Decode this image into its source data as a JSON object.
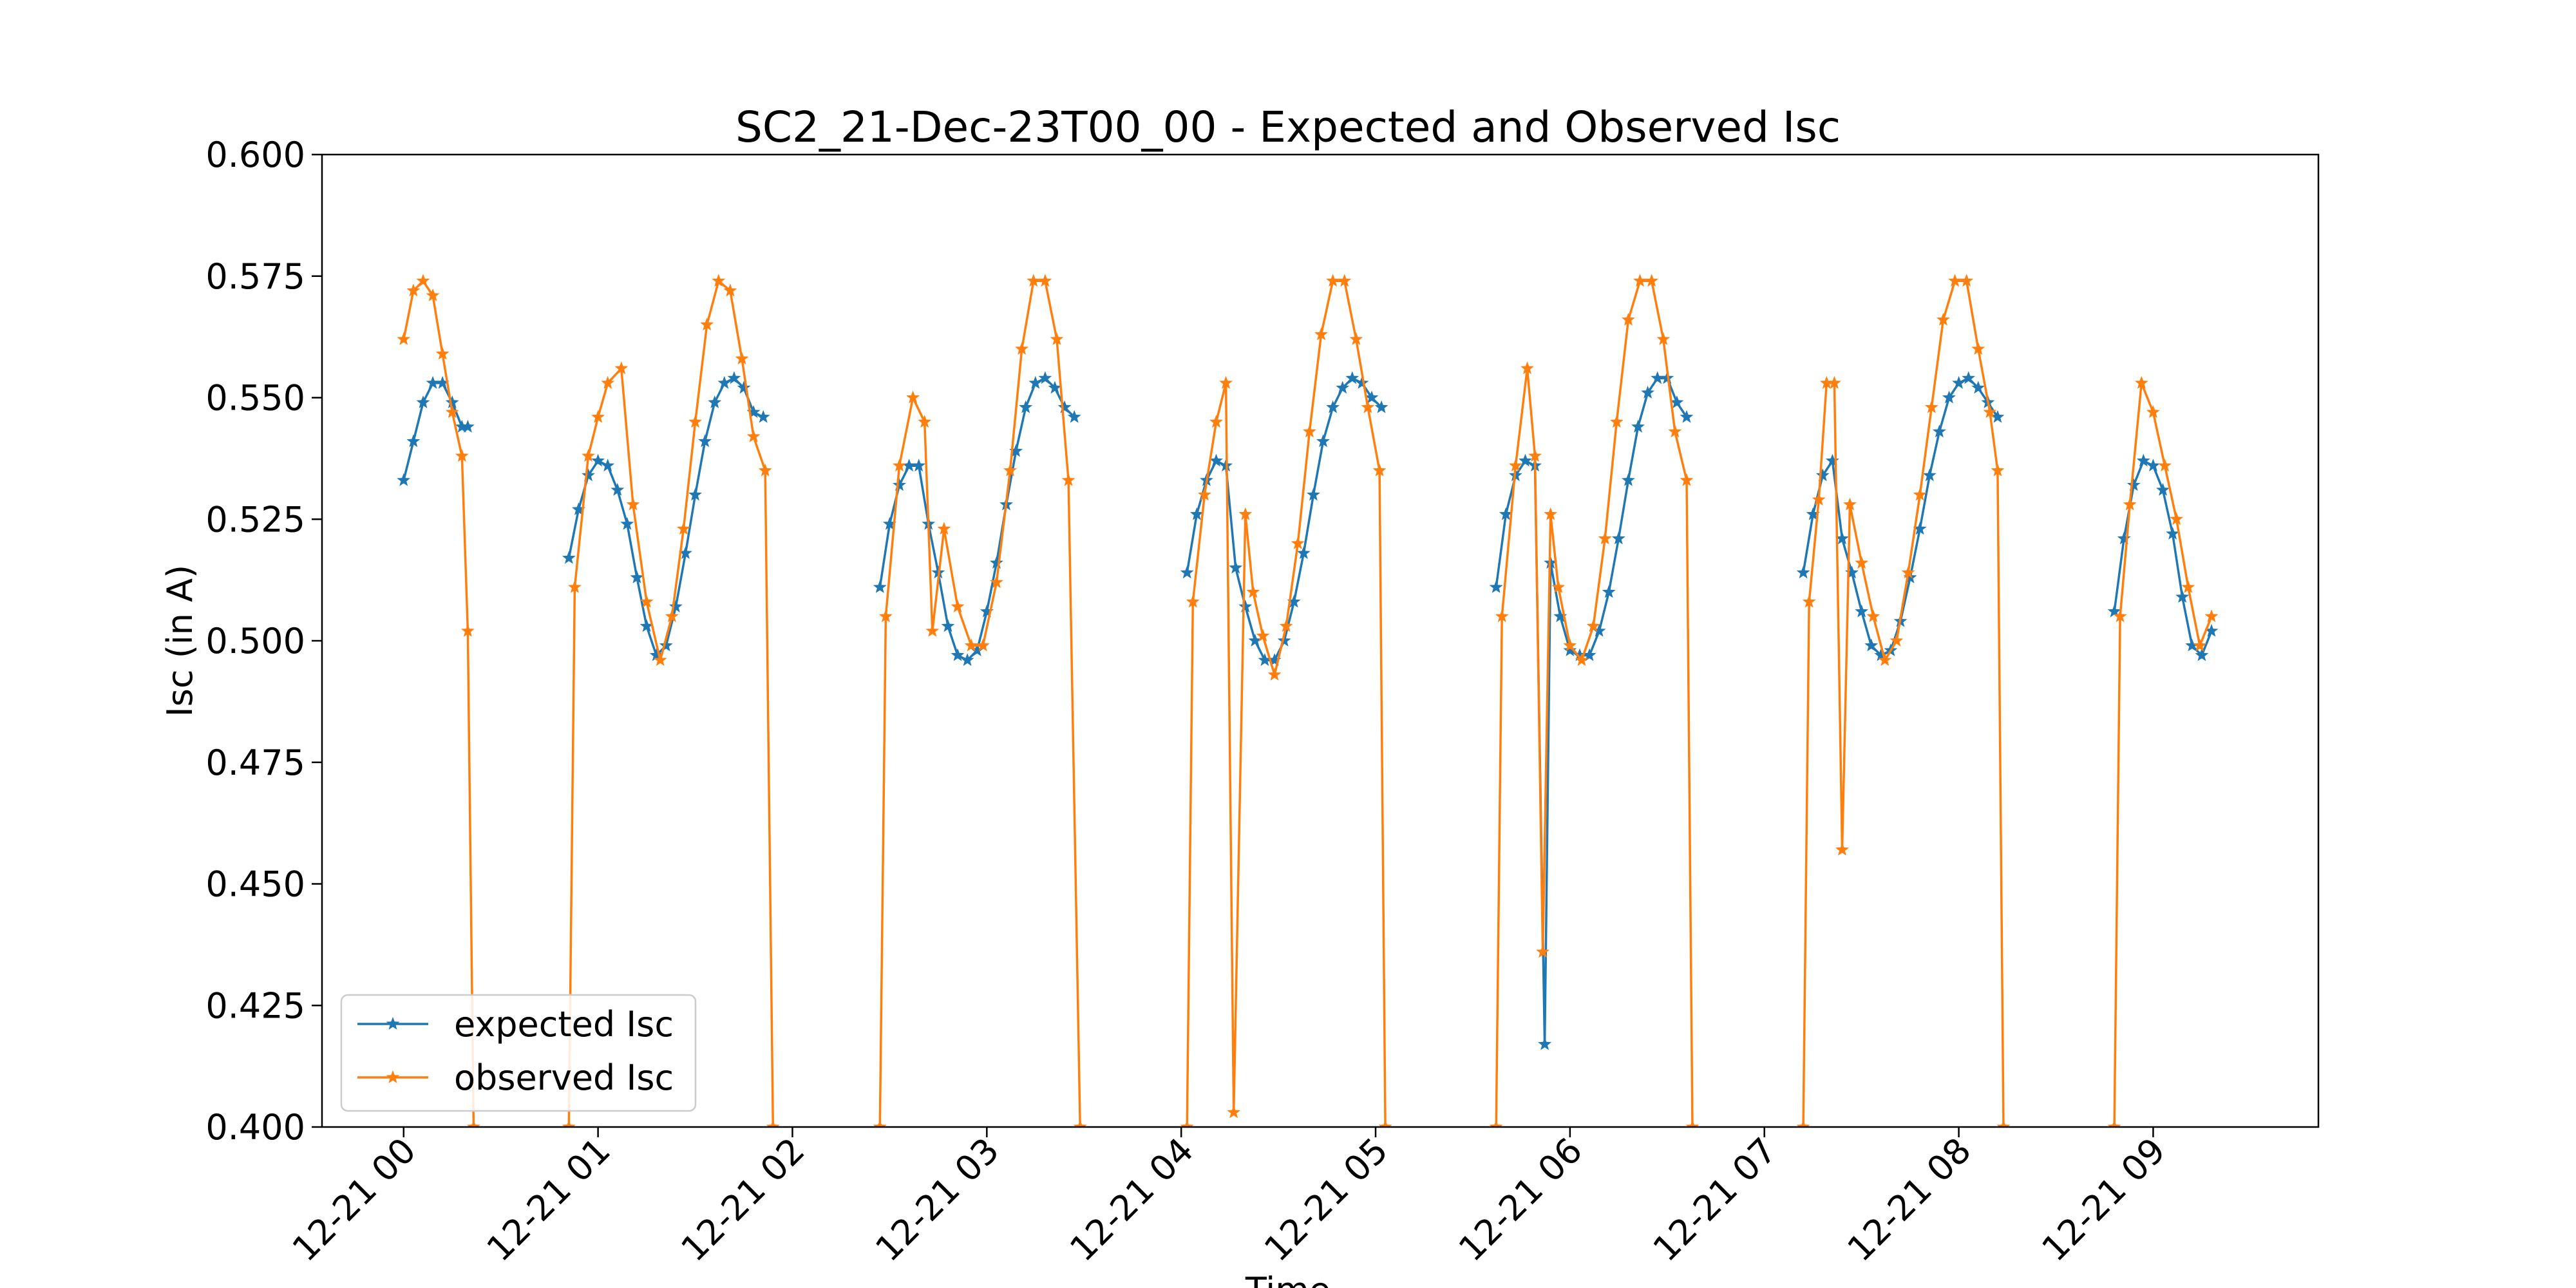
{
  "chart_data": {
    "type": "line",
    "title": "SC2_21-Dec-23T00_00 - Expected and Observed Isc",
    "xlabel": "Time",
    "ylabel": "Isc (in A)",
    "x_unit": "hours",
    "xlim": [
      -0.42,
      9.85
    ],
    "ylim": [
      0.4,
      0.6
    ],
    "grid": false,
    "legend_position": "lower-left",
    "x_ticks": [
      0,
      1,
      2,
      3,
      4,
      5,
      6,
      7,
      8,
      9
    ],
    "x_tick_labels": [
      "12-21 00",
      "12-21 01",
      "12-21 02",
      "12-21 03",
      "12-21 04",
      "12-21 05",
      "12-21 06",
      "12-21 07",
      "12-21 08",
      "12-21 09"
    ],
    "y_ticks": [
      0.4,
      0.425,
      0.45,
      0.475,
      0.5,
      0.525,
      0.55,
      0.575,
      0.6
    ],
    "y_tick_labels": [
      "0.400",
      "0.425",
      "0.450",
      "0.475",
      "0.500",
      "0.525",
      "0.550",
      "0.575",
      "0.600"
    ],
    "series": [
      {
        "name": "expected Isc",
        "color": "#1f77b4",
        "marker": "star",
        "segments": [
          {
            "x": [
              0.0,
              0.05,
              0.1,
              0.15,
              0.2,
              0.25,
              0.3,
              0.33
            ],
            "y": [
              0.533,
              0.541,
              0.549,
              0.553,
              0.553,
              0.549,
              0.544,
              0.544
            ]
          },
          {
            "x": [
              0.85,
              0.9,
              0.95,
              1.0,
              1.05,
              1.1,
              1.15,
              1.2,
              1.25,
              1.3,
              1.35,
              1.4,
              1.45,
              1.5,
              1.55,
              1.6,
              1.65,
              1.7,
              1.75,
              1.8,
              1.85
            ],
            "y": [
              0.517,
              0.527,
              0.534,
              0.537,
              0.536,
              0.531,
              0.524,
              0.513,
              0.503,
              0.497,
              0.499,
              0.507,
              0.518,
              0.53,
              0.541,
              0.549,
              0.553,
              0.554,
              0.552,
              0.547,
              0.546
            ]
          },
          {
            "x": [
              2.45,
              2.5,
              2.55,
              2.6,
              2.65,
              2.7,
              2.75,
              2.8,
              2.85,
              2.9,
              2.95,
              3.0,
              3.05,
              3.1,
              3.15,
              3.2,
              3.25,
              3.3,
              3.35,
              3.4,
              3.45
            ],
            "y": [
              0.511,
              0.524,
              0.532,
              0.536,
              0.536,
              0.524,
              0.514,
              0.503,
              0.497,
              0.496,
              0.498,
              0.506,
              0.516,
              0.528,
              0.539,
              0.548,
              0.553,
              0.554,
              0.552,
              0.548,
              0.546
            ]
          },
          {
            "x": [
              4.03,
              4.08,
              4.13,
              4.18,
              4.23,
              4.28,
              4.33,
              4.38,
              4.43,
              4.48,
              4.53,
              4.58,
              4.63,
              4.68,
              4.73,
              4.78,
              4.83,
              4.88,
              4.93,
              4.98,
              5.03
            ],
            "y": [
              0.514,
              0.526,
              0.533,
              0.537,
              0.536,
              0.515,
              0.507,
              0.5,
              0.496,
              0.496,
              0.5,
              0.508,
              0.518,
              0.53,
              0.541,
              0.548,
              0.552,
              0.554,
              0.553,
              0.55,
              0.548
            ]
          },
          {
            "x": [
              5.62,
              5.67,
              5.72,
              5.77,
              5.82,
              5.87,
              5.9,
              5.95,
              6.0,
              6.05,
              6.1,
              6.15,
              6.2,
              6.25,
              6.3,
              6.35,
              6.4,
              6.45,
              6.5,
              6.55,
              6.6
            ],
            "y": [
              0.511,
              0.526,
              0.534,
              0.537,
              0.536,
              0.417,
              0.516,
              0.505,
              0.498,
              0.497,
              0.497,
              0.502,
              0.51,
              0.521,
              0.533,
              0.544,
              0.551,
              0.554,
              0.554,
              0.549,
              0.546
            ]
          },
          {
            "x": [
              7.2,
              7.25,
              7.3,
              7.35,
              7.4,
              7.45,
              7.5,
              7.55,
              7.6,
              7.65,
              7.7,
              7.75,
              7.8,
              7.85,
              7.9,
              7.95,
              8.0,
              8.05,
              8.1,
              8.15,
              8.2
            ],
            "y": [
              0.514,
              0.526,
              0.534,
              0.537,
              0.521,
              0.514,
              0.506,
              0.499,
              0.497,
              0.498,
              0.504,
              0.513,
              0.523,
              0.534,
              0.543,
              0.55,
              0.553,
              0.554,
              0.552,
              0.549,
              0.546
            ]
          },
          {
            "x": [
              8.8,
              8.85,
              8.9,
              8.95,
              9.0,
              9.05,
              9.1,
              9.15,
              9.2,
              9.25,
              9.3
            ],
            "y": [
              0.506,
              0.521,
              0.532,
              0.537,
              0.536,
              0.531,
              0.522,
              0.509,
              0.499,
              0.497,
              0.502
            ]
          }
        ]
      },
      {
        "name": "observed Isc",
        "color": "#ff7f0e",
        "marker": "star",
        "segments": [
          {
            "x": [
              0.0,
              0.05,
              0.1,
              0.15,
              0.2,
              0.25,
              0.3,
              0.33,
              0.36
            ],
            "y": [
              0.562,
              0.572,
              0.574,
              0.571,
              0.559,
              0.547,
              0.538,
              0.502,
              0.4
            ]
          },
          {
            "x": [
              0.85,
              0.88,
              0.95,
              1.0,
              1.05,
              1.12,
              1.18,
              1.25,
              1.32,
              1.38,
              1.44,
              1.5,
              1.56,
              1.62,
              1.68,
              1.74,
              1.8,
              1.86,
              1.9
            ],
            "y": [
              0.4,
              0.511,
              0.538,
              0.546,
              0.553,
              0.556,
              0.528,
              0.508,
              0.496,
              0.505,
              0.523,
              0.545,
              0.565,
              0.574,
              0.572,
              0.558,
              0.542,
              0.535,
              0.4
            ]
          },
          {
            "x": [
              2.45,
              2.48,
              2.55,
              2.62,
              2.68,
              2.72,
              2.78,
              2.85,
              2.92,
              2.98,
              3.05,
              3.12,
              3.18,
              3.24,
              3.3,
              3.36,
              3.42,
              3.48
            ],
            "y": [
              0.4,
              0.505,
              0.536,
              0.55,
              0.545,
              0.502,
              0.523,
              0.507,
              0.499,
              0.499,
              0.512,
              0.535,
              0.56,
              0.574,
              0.574,
              0.562,
              0.533,
              0.4
            ]
          },
          {
            "x": [
              4.03,
              4.06,
              4.12,
              4.18,
              4.23,
              4.27,
              4.33,
              4.37,
              4.42,
              4.48,
              4.54,
              4.6,
              4.66,
              4.72,
              4.78,
              4.84,
              4.9,
              4.96,
              5.02,
              5.05
            ],
            "y": [
              0.4,
              0.508,
              0.53,
              0.545,
              0.553,
              0.403,
              0.526,
              0.51,
              0.501,
              0.493,
              0.503,
              0.52,
              0.543,
              0.563,
              0.574,
              0.574,
              0.562,
              0.548,
              0.535,
              0.4
            ]
          },
          {
            "x": [
              5.62,
              5.65,
              5.72,
              5.78,
              5.82,
              5.86,
              5.9,
              5.94,
              6.0,
              6.06,
              6.12,
              6.18,
              6.24,
              6.3,
              6.36,
              6.42,
              6.48,
              6.54,
              6.6,
              6.63
            ],
            "y": [
              0.4,
              0.505,
              0.536,
              0.556,
              0.538,
              0.436,
              0.526,
              0.511,
              0.499,
              0.496,
              0.503,
              0.521,
              0.545,
              0.566,
              0.574,
              0.574,
              0.562,
              0.543,
              0.533,
              0.4
            ]
          },
          {
            "x": [
              7.2,
              7.23,
              7.28,
              7.32,
              7.36,
              7.4,
              7.44,
              7.5,
              7.56,
              7.62,
              7.68,
              7.74,
              7.8,
              7.86,
              7.92,
              7.98,
              8.04,
              8.1,
              8.16,
              8.2,
              8.23
            ],
            "y": [
              0.4,
              0.508,
              0.529,
              0.553,
              0.553,
              0.457,
              0.528,
              0.516,
              0.505,
              0.496,
              0.5,
              0.514,
              0.53,
              0.548,
              0.566,
              0.574,
              0.574,
              0.56,
              0.547,
              0.535,
              0.4
            ]
          },
          {
            "x": [
              8.8,
              8.83,
              8.88,
              8.94,
              9.0,
              9.06,
              9.12,
              9.18,
              9.24,
              9.3
            ],
            "y": [
              0.4,
              0.505,
              0.528,
              0.553,
              0.547,
              0.536,
              0.525,
              0.511,
              0.499,
              0.505
            ]
          }
        ]
      }
    ]
  }
}
